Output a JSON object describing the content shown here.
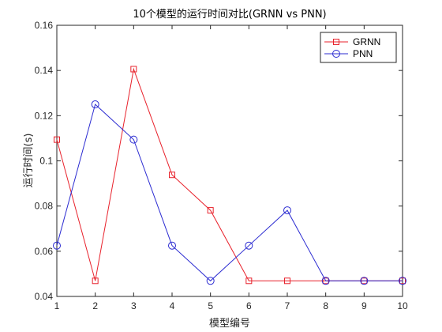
{
  "chart_data": {
    "type": "line",
    "title": "10个模型的运行时间对比(GRNN vs PNN)",
    "xlabel": "模型编号",
    "ylabel": "运行时间(s)",
    "x": [
      1,
      2,
      3,
      4,
      5,
      6,
      7,
      8,
      9,
      10
    ],
    "xlim": [
      1,
      10
    ],
    "ylim": [
      0.04,
      0.16
    ],
    "xticks": [
      "1",
      "2",
      "3",
      "4",
      "5",
      "6",
      "7",
      "8",
      "9",
      "10"
    ],
    "yticks": [
      "0.04",
      "0.06",
      "0.08",
      "0.1",
      "0.12",
      "0.14",
      "0.16"
    ],
    "grid": false,
    "legend_position": "top-right",
    "series": [
      {
        "name": "GRNN",
        "color": "#e8212b",
        "marker": "square",
        "values": [
          0.1094,
          0.0469,
          0.1406,
          0.0938,
          0.0781,
          0.0469,
          0.0469,
          0.0469,
          0.0469,
          0.0469
        ]
      },
      {
        "name": "PNN",
        "color": "#2b2bd1",
        "marker": "circle",
        "values": [
          0.0625,
          0.125,
          0.1094,
          0.0625,
          0.0469,
          0.0625,
          0.0781,
          0.0469,
          0.0469,
          0.0469
        ]
      }
    ]
  }
}
